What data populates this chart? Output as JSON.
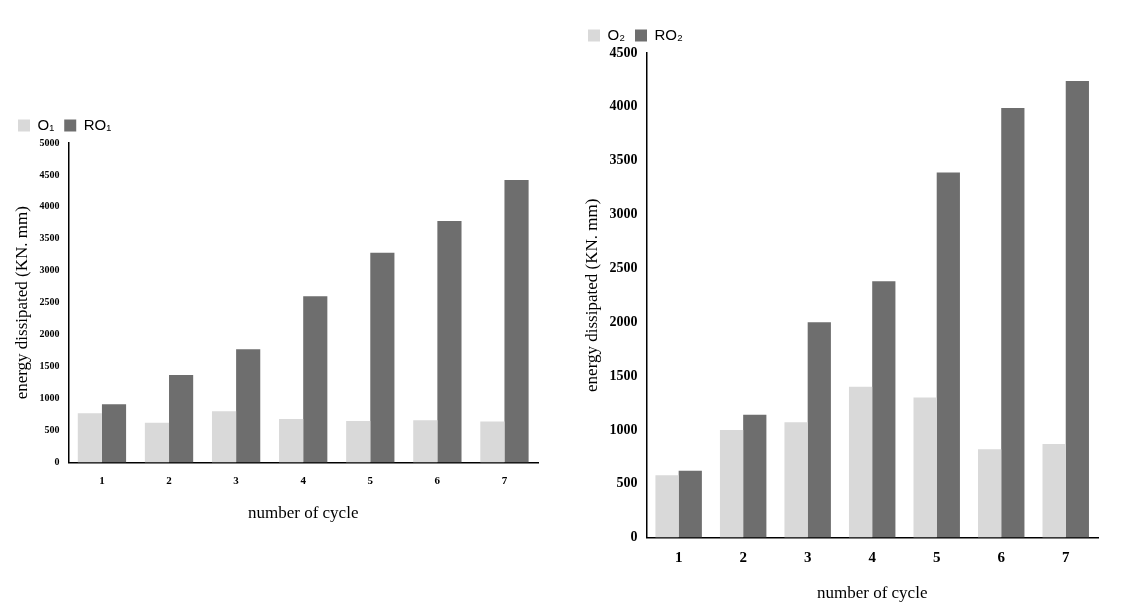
{
  "chart_data": [
    {
      "type": "bar",
      "categories": [
        "1",
        "2",
        "3",
        "4",
        "5",
        "6",
        "7"
      ],
      "xlabel": "number of cycle",
      "ylabel": "energy dissipated (KN. mm)",
      "ylim": [
        0,
        5000
      ],
      "yticks": [
        0,
        500,
        1000,
        1500,
        2000,
        2500,
        3000,
        3500,
        4000,
        4500,
        5000
      ],
      "legend": "top left",
      "series": [
        {
          "name": "O₁",
          "color": "#d9d9d9",
          "values": [
            770,
            620,
            800,
            680,
            650,
            660,
            640
          ]
        },
        {
          "name": "RO₁",
          "color": "#6e6e6e",
          "values": [
            910,
            1370,
            1770,
            2600,
            3280,
            3780,
            4420
          ]
        }
      ]
    },
    {
      "type": "bar",
      "categories": [
        "1",
        "2",
        "3",
        "4",
        "5",
        "6",
        "7"
      ],
      "xlabel": "number of cycle",
      "ylabel": "energy dissipated (KN. mm)",
      "ylim": [
        0,
        4500
      ],
      "yticks": [
        0,
        500,
        1000,
        1500,
        2000,
        2500,
        3000,
        3500,
        4000,
        4500
      ],
      "legend": "top left",
      "series": [
        {
          "name": "O₂",
          "color": "#d9d9d9",
          "values": [
            580,
            1000,
            1070,
            1400,
            1300,
            820,
            870
          ]
        },
        {
          "name": "RO₂",
          "color": "#6e6e6e",
          "values": [
            620,
            1140,
            2000,
            2380,
            3390,
            3990,
            4240
          ]
        }
      ]
    }
  ]
}
